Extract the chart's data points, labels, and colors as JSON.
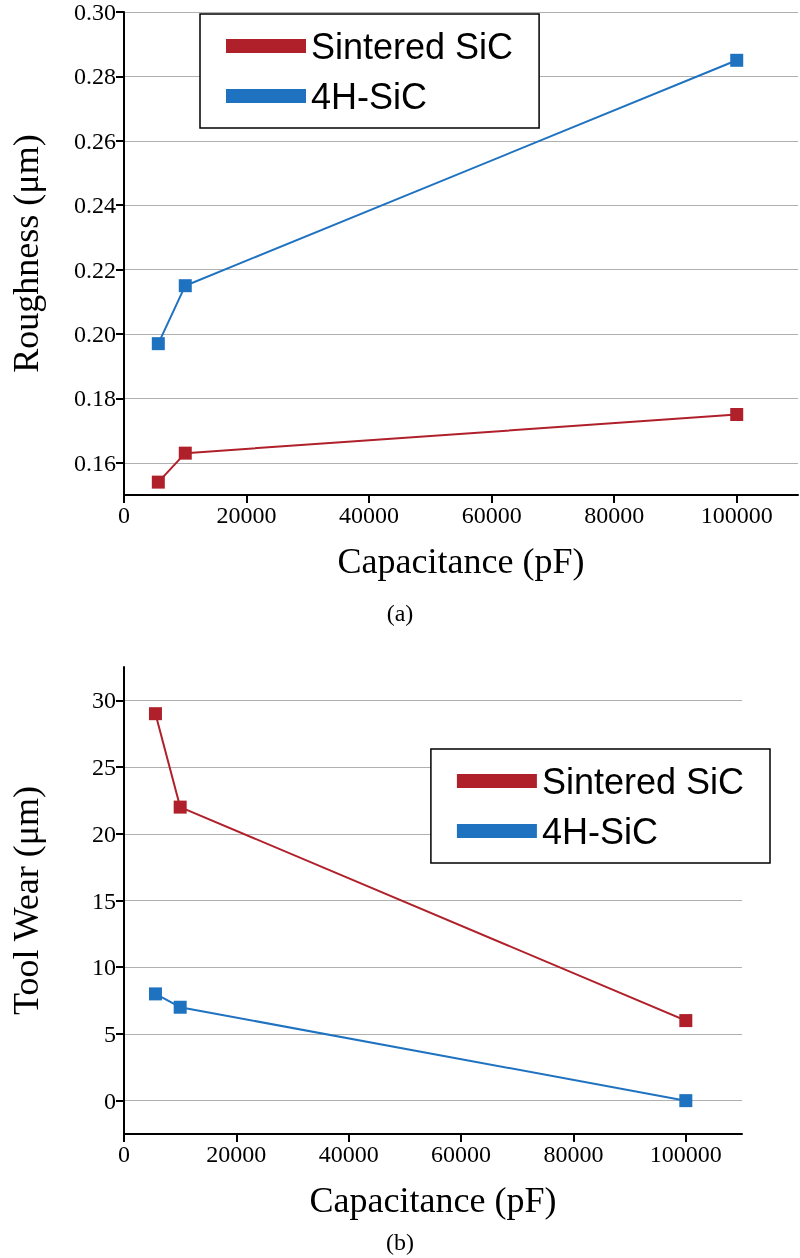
{
  "chart_data": [
    {
      "type": "line",
      "xlabel": "Capacitance (pF)",
      "ylabel": "Roughness (μm)",
      "annotations": [
        "(a)"
      ],
      "xlim": [
        0,
        110000
      ],
      "xticks": [
        0,
        20000,
        40000,
        60000,
        80000,
        100000
      ],
      "ylim": [
        0.15,
        0.3
      ],
      "yticks": [
        {
          "value": 0.16,
          "label": "0.16"
        },
        {
          "value": 0.18,
          "label": "0.18"
        },
        {
          "value": 0.2,
          "label": "0.20"
        },
        {
          "value": 0.22,
          "label": "0.22"
        },
        {
          "value": 0.24,
          "label": "0.24"
        },
        {
          "value": 0.26,
          "label": "0.26"
        },
        {
          "value": 0.28,
          "label": "0.28"
        },
        {
          "value": 0.3,
          "label": "0.30"
        }
      ],
      "grid": "y",
      "legend": "top left",
      "marker": "square",
      "line_style": "solid",
      "x": [
        5600,
        10000,
        100000
      ],
      "series": [
        {
          "name": "Sintered SiC",
          "color": "#b0202a",
          "values": [
            0.154,
            0.163,
            0.175
          ]
        },
        {
          "name": "4H-SiC",
          "color": "#1f72c0",
          "values": [
            0.197,
            0.215,
            0.285
          ]
        }
      ]
    },
    {
      "type": "line",
      "xlabel": "Capacitance (pF)",
      "ylabel": "Tool Wear (μm)",
      "annotations": [
        "(b)"
      ],
      "xlim": [
        0,
        110000
      ],
      "xticks": [
        0,
        20000,
        40000,
        60000,
        80000,
        100000
      ],
      "ylim": [
        -2.5,
        32.5
      ],
      "yticks": [
        0,
        5,
        10,
        15,
        20,
        25,
        30
      ],
      "grid": "y",
      "legend": "top right",
      "marker": "square",
      "line_style": "solid",
      "x": [
        5600,
        10000,
        100000
      ],
      "series": [
        {
          "name": "Sintered SiC",
          "color": "#b0202a",
          "values": [
            29,
            22,
            6
          ]
        },
        {
          "name": "4H-SiC",
          "color": "#1f72c0",
          "values": [
            8,
            7,
            0
          ]
        }
      ]
    }
  ]
}
